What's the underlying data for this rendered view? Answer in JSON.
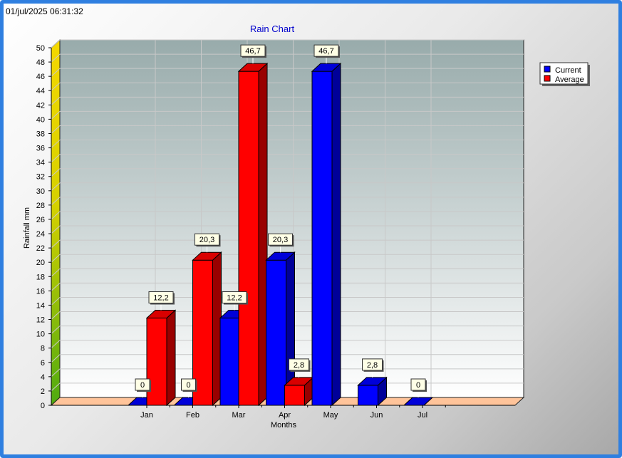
{
  "timestamp": "01/jul/2025 06:31:32",
  "chart_data": {
    "type": "bar",
    "title": "Rain Chart",
    "xlabel": "Months",
    "ylabel": "Rainfall mm",
    "categories": [
      "Jan",
      "Feb",
      "Mar",
      "Apr",
      "May",
      "Jun",
      "Jul"
    ],
    "series": [
      {
        "name": "Current",
        "color": "#0000ff",
        "values": [
          0,
          0,
          12.2,
          20.3,
          46.7,
          2.8,
          0
        ],
        "labels": [
          "0",
          "0",
          "12,2",
          "20,3",
          "46,7",
          "2,8",
          "0"
        ]
      },
      {
        "name": "Average",
        "color": "#ff0000",
        "values": [
          12.2,
          20.3,
          46.7,
          2.8,
          null,
          null,
          null
        ],
        "labels": [
          "12,2",
          "20,3",
          "46,7",
          "2,8",
          "",
          "",
          ""
        ]
      }
    ],
    "ylim": [
      0,
      50
    ],
    "ytick_step": 2,
    "grid": true,
    "legend_position": "top-right",
    "title_color": "#0000cc"
  }
}
